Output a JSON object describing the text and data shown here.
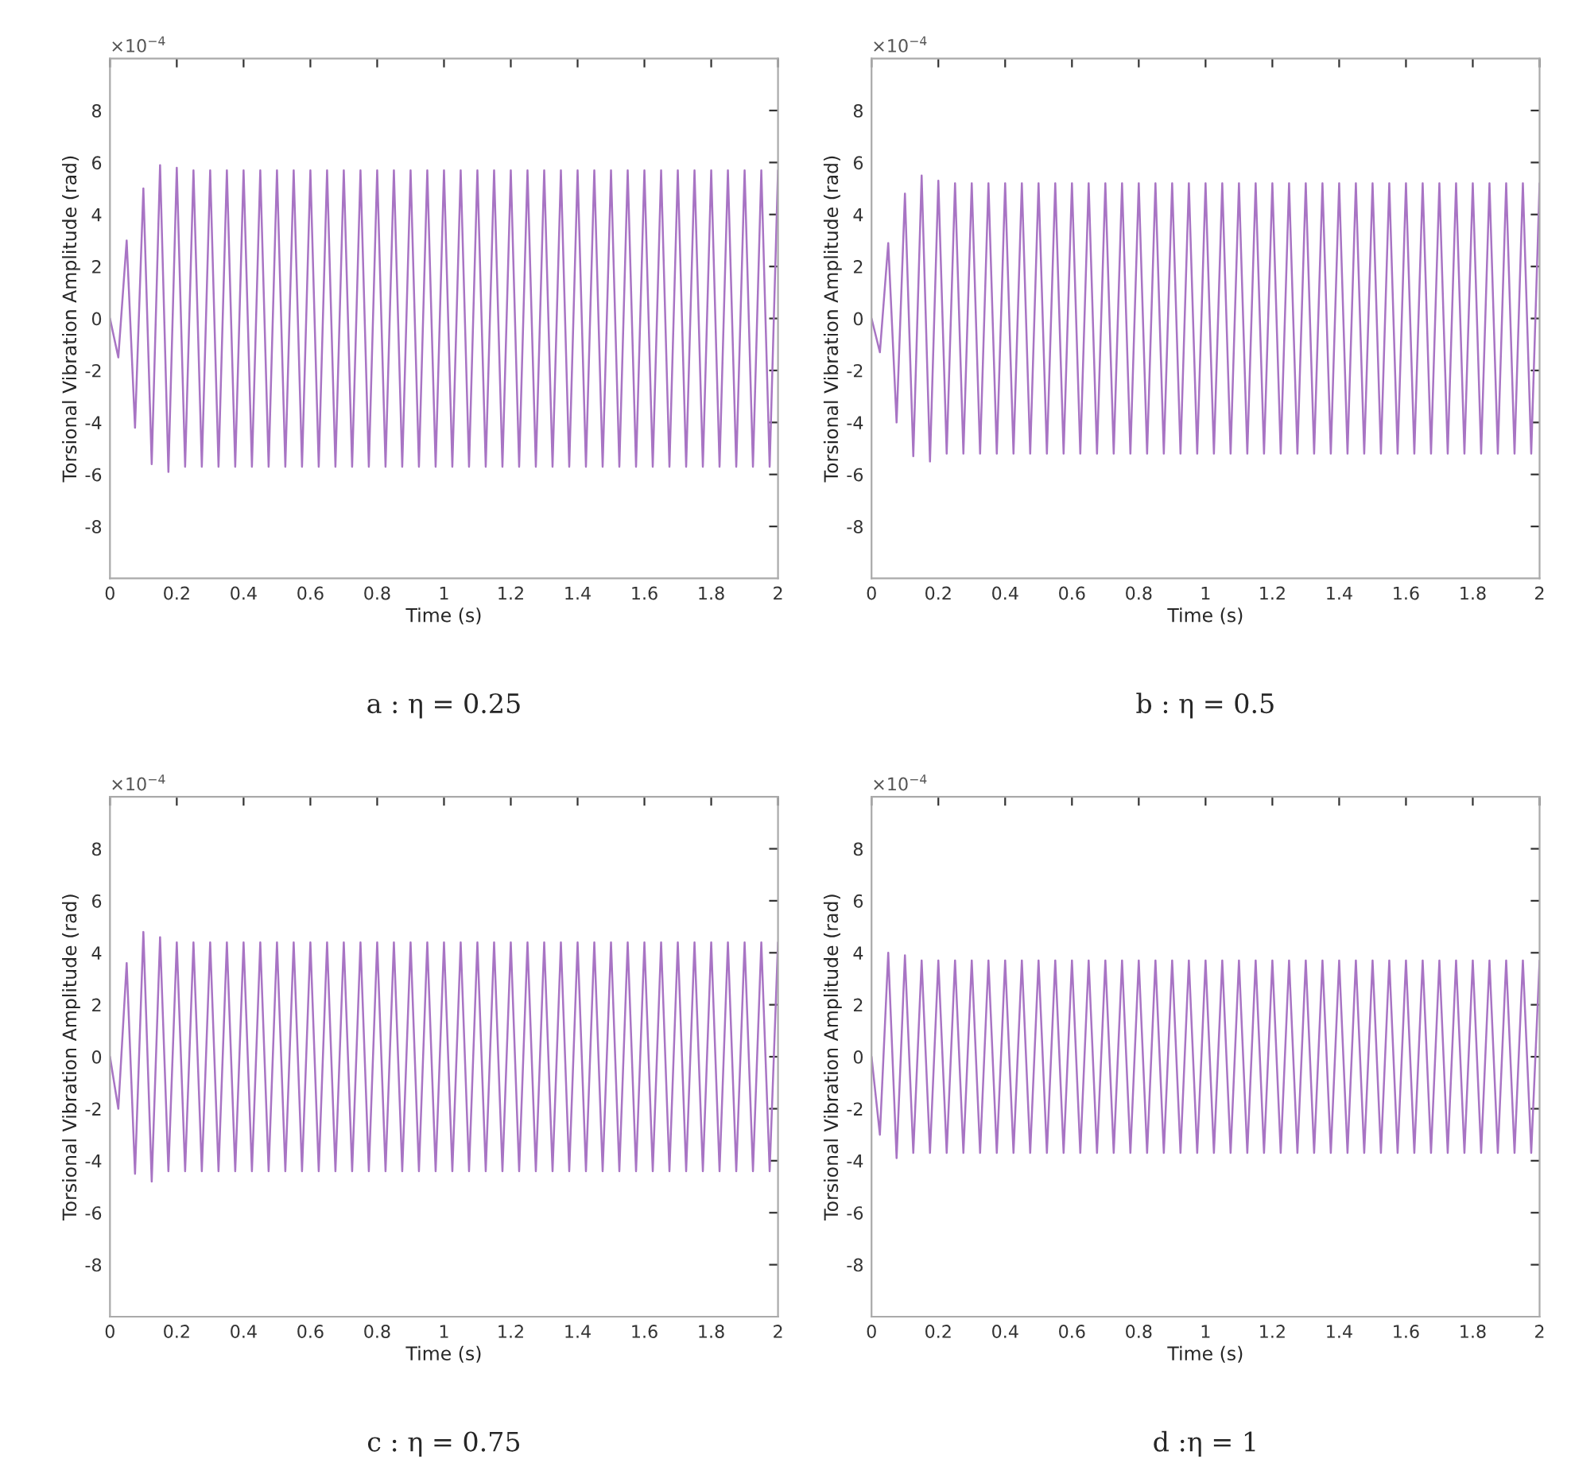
{
  "chart_data": [
    {
      "type": "line",
      "title": "a : η = 0.25",
      "xlabel": "Time (s)",
      "ylabel": "Torsional Vibration Amplitude (rad)",
      "annotations": [
        "×10$^{−4}$"
      ],
      "xlim": [
        0,
        2
      ],
      "xticks": [
        0,
        0.2,
        0.4,
        0.6,
        0.8,
        1,
        1.2,
        1.4,
        1.6,
        1.8,
        2
      ],
      "ylim": [
        -10,
        10
      ],
      "yticks": [
        -8,
        -6,
        -4,
        -2,
        0,
        2,
        4,
        6,
        8
      ],
      "grid": false,
      "x": [
        0,
        0.025,
        0.05,
        0.075,
        0.1,
        0.125,
        0.15,
        0.175,
        0.2,
        0.225,
        0.25,
        0.275,
        0.3,
        0.325,
        0.35,
        0.375,
        0.4,
        0.425,
        0.45,
        0.475,
        0.5,
        0.525,
        0.55,
        0.575,
        0.6,
        0.625,
        0.65,
        0.675,
        0.7,
        0.725,
        0.75,
        0.775,
        0.8,
        0.825,
        0.85,
        0.875,
        0.9,
        0.925,
        0.95,
        0.975,
        1,
        1.025,
        1.05,
        1.075,
        1.1,
        1.125,
        1.15,
        1.175,
        1.2,
        1.225,
        1.25,
        1.275,
        1.3,
        1.325,
        1.35,
        1.375,
        1.4,
        1.425,
        1.45,
        1.475,
        1.5,
        1.525,
        1.55,
        1.575,
        1.6,
        1.625,
        1.65,
        1.675,
        1.7,
        1.725,
        1.75,
        1.775,
        1.8,
        1.825,
        1.85,
        1.875,
        1.9,
        1.925,
        1.95,
        1.975,
        2
      ],
      "series": [
        {
          "color": "#a874c4",
          "values": [
            0,
            -1.5,
            3.0,
            -4.2,
            5.0,
            -5.6,
            5.9,
            -5.9,
            5.8,
            -5.7,
            5.7,
            -5.7,
            5.7,
            -5.7,
            5.7,
            -5.7,
            5.7,
            -5.7,
            5.7,
            -5.7,
            5.7,
            -5.7,
            5.7,
            -5.7,
            5.7,
            -5.7,
            5.7,
            -5.7,
            5.7,
            -5.7,
            5.7,
            -5.7,
            5.7,
            -5.7,
            5.7,
            -5.7,
            5.7,
            -5.7,
            5.7,
            -5.7,
            5.7,
            -5.7,
            5.7,
            -5.7,
            5.7,
            -5.7,
            5.7,
            -5.7,
            5.7,
            -5.7,
            5.7,
            -5.7,
            5.7,
            -5.7,
            5.7,
            -5.7,
            5.7,
            -5.7,
            5.7,
            -5.7,
            5.7,
            -5.7,
            5.7,
            -5.7,
            5.7,
            -5.7,
            5.7,
            -5.7,
            5.7,
            -5.7,
            5.7,
            -5.7,
            5.7,
            -5.7,
            5.7,
            -5.7,
            5.7,
            -5.7,
            5.7,
            -5.7,
            5.7
          ]
        }
      ]
    },
    {
      "type": "line",
      "title": "b : η = 0.5",
      "xlabel": "Time (s)",
      "ylabel": "Torsional Vibration Amplitude (rad)",
      "annotations": [
        "×10$^{−4}$"
      ],
      "xlim": [
        0,
        2
      ],
      "xticks": [
        0,
        0.2,
        0.4,
        0.6,
        0.8,
        1,
        1.2,
        1.4,
        1.6,
        1.8,
        2
      ],
      "ylim": [
        -10,
        10
      ],
      "yticks": [
        -8,
        -6,
        -4,
        -2,
        0,
        2,
        4,
        6,
        8
      ],
      "grid": false,
      "x": [
        0,
        0.025,
        0.05,
        0.075,
        0.1,
        0.125,
        0.15,
        0.175,
        0.2,
        0.225,
        0.25,
        0.275,
        0.3,
        0.325,
        0.35,
        0.375,
        0.4,
        0.425,
        0.45,
        0.475,
        0.5,
        0.525,
        0.55,
        0.575,
        0.6,
        0.625,
        0.65,
        0.675,
        0.7,
        0.725,
        0.75,
        0.775,
        0.8,
        0.825,
        0.85,
        0.875,
        0.9,
        0.925,
        0.95,
        0.975,
        1,
        1.025,
        1.05,
        1.075,
        1.1,
        1.125,
        1.15,
        1.175,
        1.2,
        1.225,
        1.25,
        1.275,
        1.3,
        1.325,
        1.35,
        1.375,
        1.4,
        1.425,
        1.45,
        1.475,
        1.5,
        1.525,
        1.55,
        1.575,
        1.6,
        1.625,
        1.65,
        1.675,
        1.7,
        1.725,
        1.75,
        1.775,
        1.8,
        1.825,
        1.85,
        1.875,
        1.9,
        1.925,
        1.95,
        1.975,
        2
      ],
      "series": [
        {
          "color": "#a874c4",
          "values": [
            0,
            -1.3,
            2.9,
            -4.0,
            4.8,
            -5.3,
            5.5,
            -5.5,
            5.3,
            -5.2,
            5.2,
            -5.2,
            5.2,
            -5.2,
            5.2,
            -5.2,
            5.2,
            -5.2,
            5.2,
            -5.2,
            5.2,
            -5.2,
            5.2,
            -5.2,
            5.2,
            -5.2,
            5.2,
            -5.2,
            5.2,
            -5.2,
            5.2,
            -5.2,
            5.2,
            -5.2,
            5.2,
            -5.2,
            5.2,
            -5.2,
            5.2,
            -5.2,
            5.2,
            -5.2,
            5.2,
            -5.2,
            5.2,
            -5.2,
            5.2,
            -5.2,
            5.2,
            -5.2,
            5.2,
            -5.2,
            5.2,
            -5.2,
            5.2,
            -5.2,
            5.2,
            -5.2,
            5.2,
            -5.2,
            5.2,
            -5.2,
            5.2,
            -5.2,
            5.2,
            -5.2,
            5.2,
            -5.2,
            5.2,
            -5.2,
            5.2,
            -5.2,
            5.2,
            -5.2,
            5.2,
            -5.2,
            5.2,
            -5.2,
            5.2,
            -5.2,
            5.2
          ]
        }
      ]
    },
    {
      "type": "line",
      "title": "c : η = 0.75",
      "xlabel": "Time (s)",
      "ylabel": "Torsional Vibration Amplitude (rad)",
      "annotations": [
        "×10$^{−4}$"
      ],
      "xlim": [
        0,
        2
      ],
      "xticks": [
        0,
        0.2,
        0.4,
        0.6,
        0.8,
        1,
        1.2,
        1.4,
        1.6,
        1.8,
        2
      ],
      "ylim": [
        -10,
        10
      ],
      "yticks": [
        -8,
        -6,
        -4,
        -2,
        0,
        2,
        4,
        6,
        8
      ],
      "grid": false,
      "x": [
        0,
        0.025,
        0.05,
        0.075,
        0.1,
        0.125,
        0.15,
        0.175,
        0.2,
        0.225,
        0.25,
        0.275,
        0.3,
        0.325,
        0.35,
        0.375,
        0.4,
        0.425,
        0.45,
        0.475,
        0.5,
        0.525,
        0.55,
        0.575,
        0.6,
        0.625,
        0.65,
        0.675,
        0.7,
        0.725,
        0.75,
        0.775,
        0.8,
        0.825,
        0.85,
        0.875,
        0.9,
        0.925,
        0.95,
        0.975,
        1,
        1.025,
        1.05,
        1.075,
        1.1,
        1.125,
        1.15,
        1.175,
        1.2,
        1.225,
        1.25,
        1.275,
        1.3,
        1.325,
        1.35,
        1.375,
        1.4,
        1.425,
        1.45,
        1.475,
        1.5,
        1.525,
        1.55,
        1.575,
        1.6,
        1.625,
        1.65,
        1.675,
        1.7,
        1.725,
        1.75,
        1.775,
        1.8,
        1.825,
        1.85,
        1.875,
        1.9,
        1.925,
        1.95,
        1.975,
        2
      ],
      "series": [
        {
          "color": "#a874c4",
          "values": [
            0,
            -2.0,
            3.6,
            -4.5,
            4.8,
            -4.8,
            4.6,
            -4.4,
            4.4,
            -4.4,
            4.4,
            -4.4,
            4.4,
            -4.4,
            4.4,
            -4.4,
            4.4,
            -4.4,
            4.4,
            -4.4,
            4.4,
            -4.4,
            4.4,
            -4.4,
            4.4,
            -4.4,
            4.4,
            -4.4,
            4.4,
            -4.4,
            4.4,
            -4.4,
            4.4,
            -4.4,
            4.4,
            -4.4,
            4.4,
            -4.4,
            4.4,
            -4.4,
            4.4,
            -4.4,
            4.4,
            -4.4,
            4.4,
            -4.4,
            4.4,
            -4.4,
            4.4,
            -4.4,
            4.4,
            -4.4,
            4.4,
            -4.4,
            4.4,
            -4.4,
            4.4,
            -4.4,
            4.4,
            -4.4,
            4.4,
            -4.4,
            4.4,
            -4.4,
            4.4,
            -4.4,
            4.4,
            -4.4,
            4.4,
            -4.4,
            4.4,
            -4.4,
            4.4,
            -4.4,
            4.4,
            -4.4,
            4.4,
            -4.4,
            4.4,
            -4.4,
            4.4
          ]
        }
      ]
    },
    {
      "type": "line",
      "title": "d :η = 1",
      "xlabel": "Time (s)",
      "ylabel": "Torsional Vibration Amplitude (rad)",
      "annotations": [
        "×10$^{−4}$"
      ],
      "xlim": [
        0,
        2
      ],
      "xticks": [
        0,
        0.2,
        0.4,
        0.6,
        0.8,
        1,
        1.2,
        1.4,
        1.6,
        1.8,
        2
      ],
      "ylim": [
        -10,
        10
      ],
      "yticks": [
        -8,
        -6,
        -4,
        -2,
        0,
        2,
        4,
        6,
        8
      ],
      "grid": false,
      "x": [
        0,
        0.025,
        0.05,
        0.075,
        0.1,
        0.125,
        0.15,
        0.175,
        0.2,
        0.225,
        0.25,
        0.275,
        0.3,
        0.325,
        0.35,
        0.375,
        0.4,
        0.425,
        0.45,
        0.475,
        0.5,
        0.525,
        0.55,
        0.575,
        0.6,
        0.625,
        0.65,
        0.675,
        0.7,
        0.725,
        0.75,
        0.775,
        0.8,
        0.825,
        0.85,
        0.875,
        0.9,
        0.925,
        0.95,
        0.975,
        1,
        1.025,
        1.05,
        1.075,
        1.1,
        1.125,
        1.15,
        1.175,
        1.2,
        1.225,
        1.25,
        1.275,
        1.3,
        1.325,
        1.35,
        1.375,
        1.4,
        1.425,
        1.45,
        1.475,
        1.5,
        1.525,
        1.55,
        1.575,
        1.6,
        1.625,
        1.65,
        1.675,
        1.7,
        1.725,
        1.75,
        1.775,
        1.8,
        1.825,
        1.85,
        1.875,
        1.9,
        1.925,
        1.95,
        1.975,
        2
      ],
      "series": [
        {
          "color": "#a874c4",
          "values": [
            0,
            -3.0,
            4.0,
            -3.9,
            3.9,
            -3.7,
            3.7,
            -3.7,
            3.7,
            -3.7,
            3.7,
            -3.7,
            3.7,
            -3.7,
            3.7,
            -3.7,
            3.7,
            -3.7,
            3.7,
            -3.7,
            3.7,
            -3.7,
            3.7,
            -3.7,
            3.7,
            -3.7,
            3.7,
            -3.7,
            3.7,
            -3.7,
            3.7,
            -3.7,
            3.7,
            -3.7,
            3.7,
            -3.7,
            3.7,
            -3.7,
            3.7,
            -3.7,
            3.7,
            -3.7,
            3.7,
            -3.7,
            3.7,
            -3.7,
            3.7,
            -3.7,
            3.7,
            -3.7,
            3.7,
            -3.7,
            3.7,
            -3.7,
            3.7,
            -3.7,
            3.7,
            -3.7,
            3.7,
            -3.7,
            3.7,
            -3.7,
            3.7,
            -3.7,
            3.7,
            -3.7,
            3.7,
            -3.7,
            3.7,
            -3.7,
            3.7,
            -3.7,
            3.7,
            -3.7,
            3.7,
            -3.7,
            3.7,
            -3.7,
            3.7,
            -3.7,
            3.7
          ]
        }
      ]
    }
  ]
}
